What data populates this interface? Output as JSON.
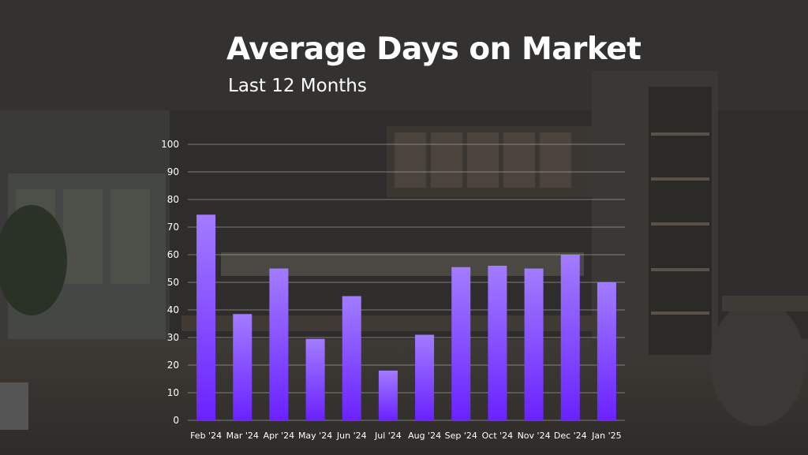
{
  "header": {
    "title": "Average Days on Market",
    "subtitle": "Last 12 Months"
  },
  "colors": {
    "bar_top": "#a27cff",
    "bar_bottom": "#6a22ff",
    "gridline": "#bdbdbd",
    "text": "#ffffff"
  },
  "chart_data": {
    "type": "bar",
    "title": "Average Days on Market",
    "subtitle": "Last 12 Months",
    "xlabel": "",
    "ylabel": "",
    "ylim": [
      0,
      100
    ],
    "yticks": [
      0,
      10,
      20,
      30,
      40,
      50,
      60,
      70,
      80,
      90,
      100
    ],
    "grid": true,
    "categories": [
      "Feb '24",
      "Mar '24",
      "Apr '24",
      "May '24",
      "Jun '24",
      "Jul '24",
      "Aug '24",
      "Sep '24",
      "Oct '24",
      "Nov '24",
      "Dec '24",
      "Jan '25"
    ],
    "values": [
      74.5,
      38.5,
      55,
      29.5,
      45,
      18,
      31,
      55.5,
      56,
      55,
      60,
      50
    ]
  }
}
